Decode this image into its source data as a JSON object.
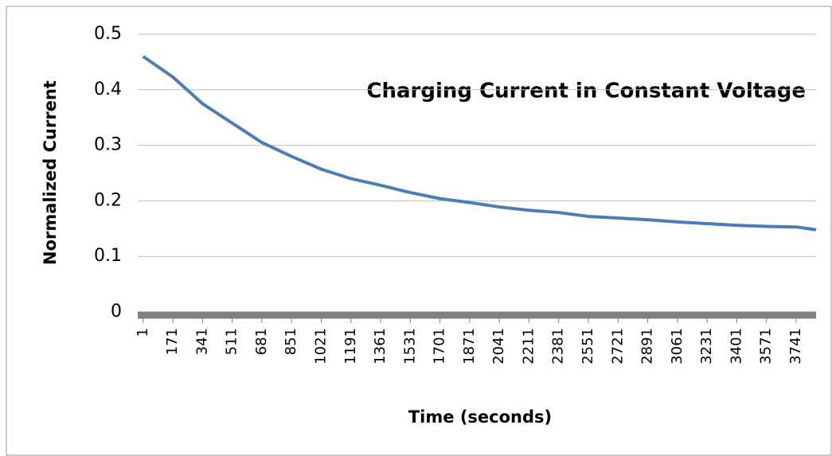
{
  "chart_data": {
    "type": "line",
    "title": "Charging Current in Constant Voltage",
    "x_label": "Time (seconds)",
    "y_label": "Normalized Current",
    "x": [
      1,
      171,
      341,
      511,
      681,
      851,
      1021,
      1191,
      1361,
      1531,
      1701,
      1871,
      2041,
      2211,
      2381,
      2551,
      2721,
      2891,
      3061,
      3231,
      3401,
      3571,
      3741,
      3855
    ],
    "series": [
      {
        "name": "Normalized Current",
        "color": "#4a7ebb",
        "values": [
          0.46,
          0.423,
          0.375,
          0.34,
          0.305,
          0.28,
          0.257,
          0.24,
          0.228,
          0.215,
          0.204,
          0.197,
          0.189,
          0.183,
          0.179,
          0.172,
          0.169,
          0.166,
          0.162,
          0.159,
          0.156,
          0.154,
          0.153,
          0.148
        ]
      }
    ],
    "xlim": [
      -30,
      3855
    ],
    "xticks": [
      1,
      171,
      341,
      511,
      681,
      851,
      1021,
      1191,
      1361,
      1531,
      1701,
      1871,
      2041,
      2211,
      2381,
      2551,
      2721,
      2891,
      3061,
      3231,
      3401,
      3571,
      3741
    ],
    "ylim": [
      0,
      0.5
    ],
    "yticks": [
      0,
      0.1,
      0.2,
      0.3,
      0.4,
      0.5
    ],
    "grid": true
  }
}
